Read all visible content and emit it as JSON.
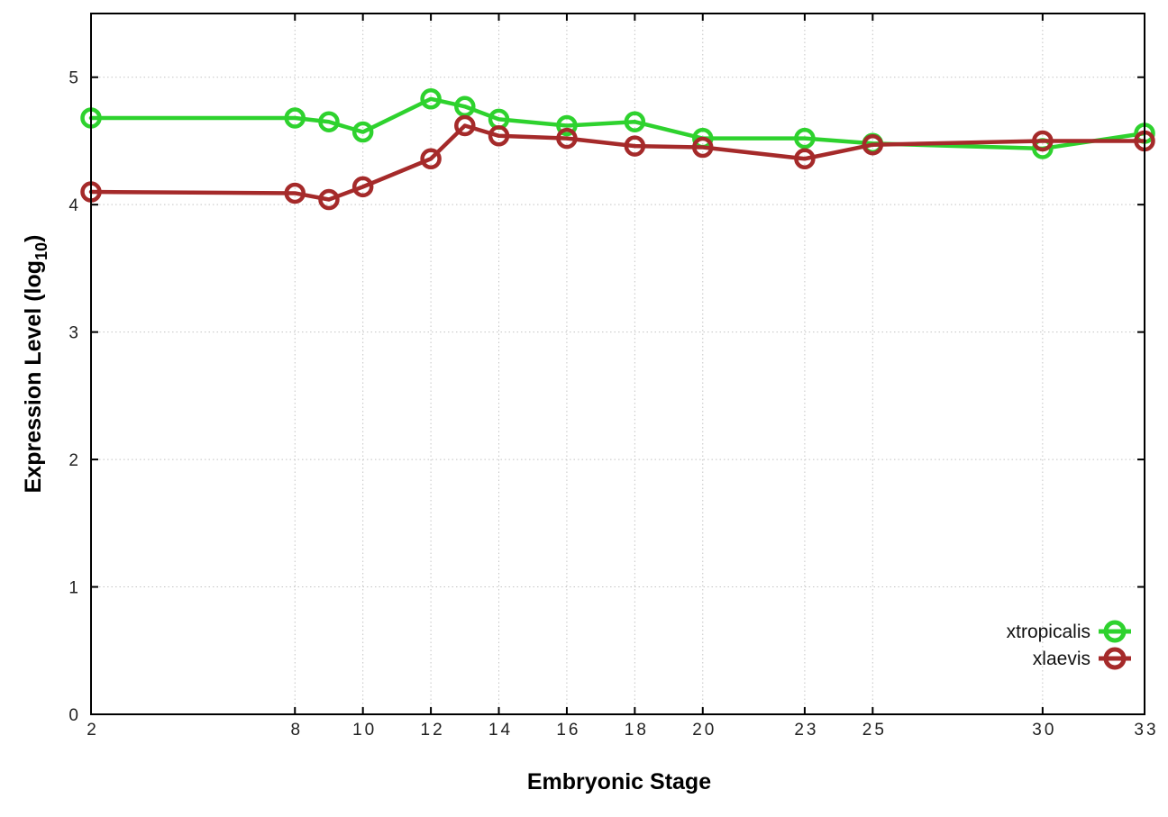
{
  "chart_data": {
    "type": "line",
    "title": "",
    "xlabel": "Embryonic Stage",
    "ylabel": "Expression Level (log10)",
    "ylabel_parts": {
      "main": "Expression Level (log",
      "subscript": "10",
      "close": ")"
    },
    "x": [
      2,
      8,
      9,
      10,
      12,
      13,
      14,
      16,
      18,
      20,
      23,
      25,
      30,
      33
    ],
    "series": [
      {
        "name": "xtropicalis",
        "color": "#2ed22e",
        "values": [
          4.68,
          4.68,
          4.65,
          4.57,
          4.83,
          4.77,
          4.67,
          4.62,
          4.65,
          4.52,
          4.52,
          4.48,
          4.44,
          4.56
        ]
      },
      {
        "name": "xlaevis",
        "color": "#a52a2a",
        "values": [
          4.1,
          4.09,
          4.04,
          4.14,
          4.36,
          4.62,
          4.54,
          4.52,
          4.46,
          4.45,
          4.36,
          4.47,
          4.5,
          4.5
        ]
      }
    ],
    "x_tick_labels": [
      "2",
      "8",
      "10",
      "12",
      "14",
      "16",
      "18",
      "20",
      "23",
      "25",
      "30",
      "33"
    ],
    "x_tick_values": [
      2,
      8,
      10,
      12,
      14,
      16,
      18,
      20,
      23,
      25,
      30,
      33
    ],
    "y_tick_labels": [
      "0",
      "1",
      "2",
      "3",
      "4",
      "5"
    ],
    "y_tick_values": [
      0,
      1,
      2,
      3,
      4,
      5
    ],
    "xlim": [
      2,
      33
    ],
    "ylim": [
      0,
      5.5
    ],
    "grid": true,
    "grid_style": "dotted",
    "marker": "open-circle",
    "legend": {
      "position": "inside-bottom-right",
      "entries": [
        "xtropicalis",
        "xlaevis"
      ]
    },
    "colors": {
      "grid": "#c4c4c4",
      "axis": "#000000",
      "text": "#1a1a1a"
    }
  }
}
